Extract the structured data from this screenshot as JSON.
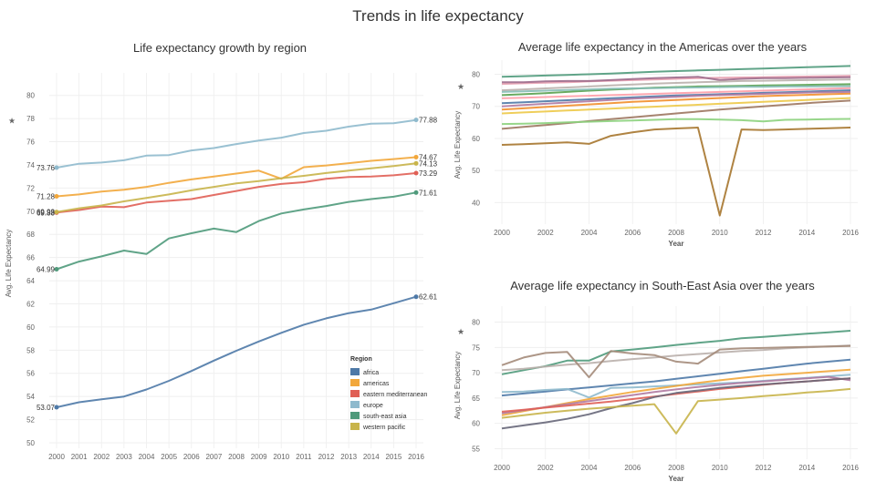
{
  "dashboard_title": "Trends in life expectancy",
  "colors": {
    "africa": "#4e79a7",
    "americas": "#f2a73b",
    "eastern mediterranean": "#e05f55",
    "europe": "#8fbacd",
    "south-east asia": "#4f9a7b",
    "western pacific": "#c8b44a"
  },
  "chart_data": [
    {
      "type": "line",
      "title": "Life expectancy growth by region",
      "xlabel": "",
      "ylabel": "Avg. Life Expectancy",
      "ylim": [
        50,
        81
      ],
      "grid": true,
      "legend_title": "Region",
      "legend_position": "bottom-right",
      "x": [
        2000,
        2001,
        2002,
        2003,
        2004,
        2005,
        2006,
        2007,
        2008,
        2009,
        2010,
        2011,
        2012,
        2013,
        2014,
        2015,
        2016
      ],
      "yticks": [
        50,
        52,
        54,
        56,
        58,
        60,
        62,
        64,
        66,
        68,
        70,
        72,
        74,
        76,
        78,
        80
      ],
      "series": [
        {
          "name": "africa",
          "values": [
            53.07,
            53.5,
            53.75,
            54.0,
            54.6,
            55.35,
            56.2,
            57.1,
            57.95,
            58.75,
            59.5,
            60.2,
            60.75,
            61.2,
            61.5,
            62.05,
            62.61
          ],
          "start_label": "53.07",
          "end_label": "62.61"
        },
        {
          "name": "americas",
          "values": [
            71.28,
            71.45,
            71.7,
            71.85,
            72.1,
            72.45,
            72.75,
            73.0,
            73.25,
            73.5,
            72.8,
            73.8,
            73.95,
            74.15,
            74.35,
            74.5,
            74.67
          ],
          "start_label": "71.28",
          "end_label": "74.67"
        },
        {
          "name": "eastern mediterranean",
          "values": [
            69.88,
            70.1,
            70.4,
            70.35,
            70.75,
            70.9,
            71.05,
            71.4,
            71.75,
            72.1,
            72.35,
            72.5,
            72.8,
            72.95,
            73.0,
            73.1,
            73.29
          ],
          "start_label": "69.88",
          "end_label": "73.29"
        },
        {
          "name": "europe",
          "values": [
            73.76,
            74.1,
            74.2,
            74.4,
            74.8,
            74.85,
            75.25,
            75.45,
            75.8,
            76.1,
            76.35,
            76.75,
            76.95,
            77.3,
            77.55,
            77.6,
            77.88
          ],
          "start_label": "73.76",
          "end_label": "77.88"
        },
        {
          "name": "south-east asia",
          "values": [
            64.99,
            65.65,
            66.1,
            66.6,
            66.3,
            67.65,
            68.1,
            68.5,
            68.2,
            69.15,
            69.8,
            70.15,
            70.45,
            70.8,
            71.05,
            71.25,
            71.61
          ],
          "start_label": "64.99",
          "end_label": "71.61"
        },
        {
          "name": "western pacific",
          "values": [
            69.93,
            70.25,
            70.5,
            70.85,
            71.15,
            71.45,
            71.8,
            72.1,
            72.4,
            72.6,
            72.85,
            73.05,
            73.3,
            73.5,
            73.7,
            73.9,
            74.13
          ],
          "start_label": "69.93",
          "end_label": "74.13"
        }
      ]
    },
    {
      "type": "line",
      "title": "Average life expectancy in the Americas over the years",
      "xlabel": "Year",
      "ylabel": "Avg. Life Expectancy",
      "ylim": [
        35,
        81
      ],
      "grid": true,
      "x": [
        2000,
        2001,
        2002,
        2003,
        2004,
        2005,
        2006,
        2007,
        2008,
        2009,
        2010,
        2011,
        2012,
        2013,
        2014,
        2015,
        2016
      ],
      "xticks": [
        2000,
        2002,
        2004,
        2006,
        2008,
        2010,
        2012,
        2014,
        2016
      ],
      "yticks": [
        40,
        50,
        60,
        70,
        80
      ],
      "series": [
        {
          "color": "#4f9a7b",
          "values": [
            79.2,
            79.4,
            79.6,
            79.8,
            80.0,
            80.2,
            80.5,
            80.8,
            81.0,
            81.2,
            81.4,
            81.6,
            81.8,
            82.0,
            82.2,
            82.4,
            82.6
          ]
        },
        {
          "color": "#e8a0b0",
          "values": [
            77.0,
            77.2,
            77.4,
            77.5,
            77.8,
            78.0,
            78.2,
            78.4,
            78.6,
            78.8,
            78.9,
            79.0,
            79.1,
            79.2,
            79.3,
            79.4,
            79.5
          ]
        },
        {
          "color": "#9d6b8c",
          "values": [
            77.5,
            77.5,
            77.8,
            77.9,
            77.9,
            78.2,
            78.5,
            78.8,
            79.0,
            79.2,
            78.2,
            78.6,
            78.8,
            78.8,
            78.9,
            79.0,
            79.1
          ]
        },
        {
          "color": "#bab0ac",
          "values": [
            75.0,
            75.3,
            75.6,
            75.9,
            76.2,
            76.5,
            76.8,
            77.1,
            77.3,
            77.5,
            77.7,
            77.9,
            78.0,
            78.1,
            78.2,
            78.3,
            78.4
          ]
        },
        {
          "color": "#59a14f",
          "values": [
            73.5,
            73.8,
            74.1,
            74.5,
            74.9,
            75.2,
            75.5,
            75.8,
            76.0,
            76.2,
            76.3,
            76.4,
            76.5,
            76.6,
            76.7,
            76.8,
            76.9
          ]
        },
        {
          "color": "#86bcb6",
          "values": [
            74.5,
            74.7,
            74.9,
            75.1,
            75.3,
            75.5,
            75.6,
            75.7,
            75.8,
            75.9,
            76.0,
            76.1,
            76.1,
            76.2,
            76.2,
            76.3,
            76.3
          ]
        },
        {
          "color": "#4e79a7",
          "values": [
            71.0,
            71.3,
            71.6,
            71.9,
            72.2,
            72.5,
            72.8,
            73.1,
            73.4,
            73.6,
            73.8,
            74.0,
            74.2,
            74.4,
            74.6,
            74.8,
            75.0
          ]
        },
        {
          "color": "#f28e2b",
          "values": [
            69.0,
            69.4,
            69.8,
            70.2,
            70.6,
            71.0,
            71.4,
            71.7,
            72.0,
            72.3,
            72.6,
            72.9,
            73.2,
            73.4,
            73.6,
            73.8,
            74.0
          ]
        },
        {
          "color": "#edc948",
          "values": [
            67.8,
            68.1,
            68.4,
            68.7,
            69.0,
            69.3,
            69.6,
            69.9,
            70.2,
            70.5,
            70.8,
            71.1,
            71.4,
            71.7,
            72.0,
            72.3,
            72.6
          ]
        },
        {
          "color": "#ff9da7",
          "values": [
            72.5,
            72.7,
            72.9,
            73.1,
            73.3,
            73.5,
            73.7,
            73.9,
            74.1,
            74.3,
            74.5,
            74.7,
            74.9,
            75.1,
            75.3,
            75.5,
            75.7
          ]
        },
        {
          "color": "#b07aa1",
          "values": [
            70.0,
            70.4,
            70.8,
            71.2,
            71.6,
            72.0,
            72.4,
            72.7,
            73.0,
            73.3,
            73.5,
            73.7,
            73.9,
            74.1,
            74.3,
            74.4,
            74.5
          ]
        },
        {
          "color": "#9c755f",
          "values": [
            63.0,
            63.6,
            64.2,
            64.8,
            65.4,
            66.0,
            66.6,
            67.2,
            67.8,
            68.4,
            69.0,
            69.5,
            70.0,
            70.5,
            71.0,
            71.4,
            71.8
          ]
        },
        {
          "color": "#8cd17d",
          "values": [
            64.5,
            64.6,
            64.8,
            65.0,
            65.2,
            65.4,
            65.6,
            65.8,
            66.0,
            66.0,
            65.9,
            65.7,
            65.3,
            65.8,
            65.9,
            66.0,
            66.1
          ]
        },
        {
          "color": "#a6762e",
          "values": [
            58.0,
            58.2,
            58.5,
            58.8,
            58.3,
            60.8,
            61.9,
            62.8,
            63.1,
            63.4,
            36.0,
            62.8,
            62.6,
            62.8,
            63.0,
            63.2,
            63.4
          ]
        }
      ]
    },
    {
      "type": "line",
      "title": "Average life expectancy in South-East Asia over the years",
      "xlabel": "Year",
      "ylabel": "Avg. Life Expectancy",
      "ylim": [
        54,
        81
      ],
      "grid": true,
      "x": [
        2000,
        2001,
        2002,
        2003,
        2004,
        2005,
        2006,
        2007,
        2008,
        2009,
        2010,
        2011,
        2012,
        2013,
        2014,
        2015,
        2016
      ],
      "xticks": [
        2000,
        2002,
        2004,
        2006,
        2008,
        2010,
        2012,
        2014,
        2016
      ],
      "yticks": [
        55,
        60,
        65,
        70,
        75,
        80
      ],
      "series": [
        {
          "color": "#4f9a7b",
          "values": [
            69.7,
            70.5,
            71.3,
            72.4,
            72.4,
            74.2,
            74.6,
            75.0,
            75.5,
            75.9,
            76.3,
            76.8,
            77.1,
            77.4,
            77.7,
            78.0,
            78.3
          ]
        },
        {
          "color": "#bab0ac",
          "values": [
            70.5,
            70.8,
            71.2,
            71.6,
            71.9,
            72.3,
            72.7,
            73.0,
            73.4,
            73.7,
            74.0,
            74.3,
            74.5,
            74.8,
            75.0,
            75.2,
            75.4
          ]
        },
        {
          "color": "#a48b7a",
          "values": [
            71.5,
            73.0,
            73.9,
            74.1,
            69.1,
            74.3,
            73.8,
            73.5,
            72.2,
            71.8,
            74.6,
            74.8,
            74.9,
            75.0,
            75.1,
            75.2,
            75.3
          ]
        },
        {
          "color": "#4e79a7",
          "values": [
            65.5,
            65.9,
            66.3,
            66.7,
            67.1,
            67.5,
            67.9,
            68.3,
            68.8,
            69.3,
            69.8,
            70.3,
            70.8,
            71.3,
            71.8,
            72.2,
            72.6
          ]
        },
        {
          "color": "#8fbacd",
          "values": [
            66.2,
            66.3,
            66.6,
            66.8,
            65.1,
            67.0,
            67.1,
            67.3,
            67.5,
            67.7,
            67.9,
            68.1,
            68.4,
            68.7,
            69.0,
            69.3,
            69.6
          ]
        },
        {
          "color": "#f2a73b",
          "values": [
            61.6,
            62.4,
            63.2,
            64.0,
            64.8,
            65.5,
            66.2,
            66.8,
            67.4,
            68.0,
            68.5,
            69.0,
            69.4,
            69.7,
            70.0,
            70.3,
            70.6
          ]
        },
        {
          "color": "#b07aa1",
          "values": [
            62.0,
            62.6,
            63.2,
            63.8,
            64.4,
            65.0,
            65.6,
            66.2,
            66.7,
            67.2,
            67.6,
            68.0,
            68.3,
            68.6,
            68.9,
            69.2,
            68.5
          ]
        },
        {
          "color": "#e05f55",
          "values": [
            62.3,
            62.7,
            63.1,
            63.5,
            63.9,
            64.3,
            64.8,
            65.3,
            65.8,
            66.3,
            66.8,
            67.2,
            67.6,
            68.0,
            68.3,
            68.6,
            68.9
          ]
        },
        {
          "color": "#676779",
          "values": [
            59.0,
            59.6,
            60.2,
            60.9,
            61.8,
            63.0,
            64.0,
            65.2,
            66.0,
            66.5,
            67.0,
            67.4,
            67.7,
            68.0,
            68.3,
            68.6,
            68.9
          ]
        },
        {
          "color": "#c8b44a",
          "values": [
            61.1,
            61.6,
            62.1,
            62.5,
            62.9,
            63.2,
            63.5,
            63.8,
            58.0,
            64.4,
            64.7,
            65.0,
            65.4,
            65.7,
            66.1,
            66.4,
            66.8
          ]
        }
      ]
    }
  ]
}
